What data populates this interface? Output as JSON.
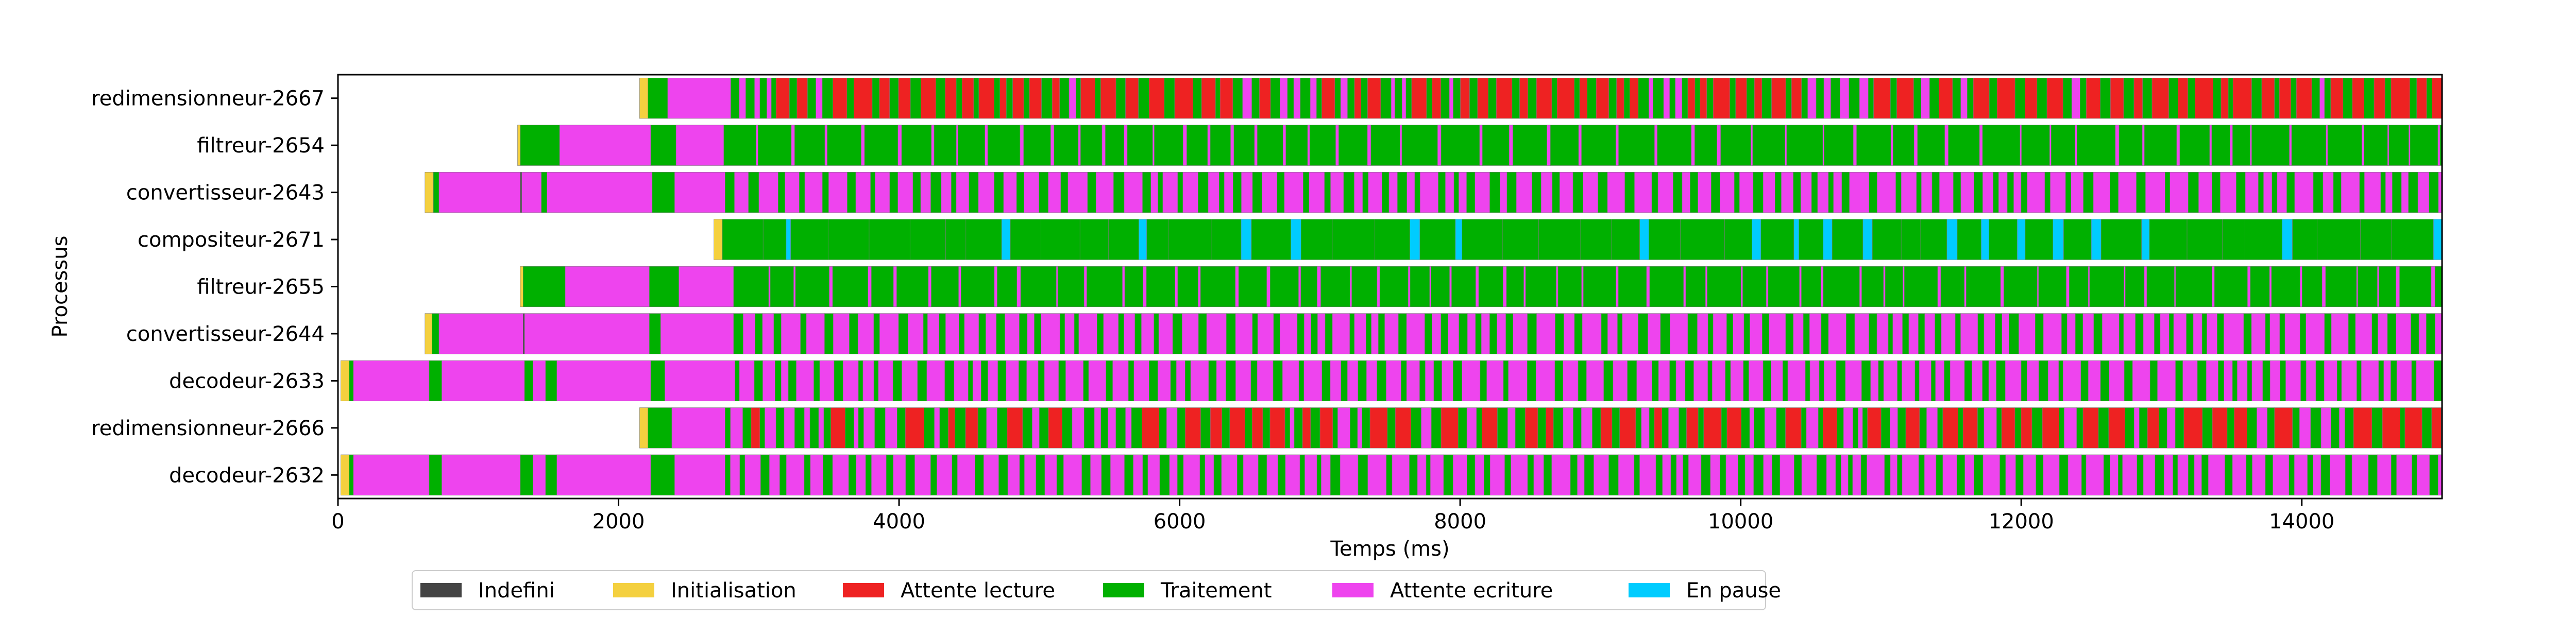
{
  "chart_data": {
    "type": "gantt",
    "xlabel": "Temps (ms)",
    "ylabel": "Processus",
    "xlim": [
      0,
      15000
    ],
    "xticks": [
      0,
      2000,
      4000,
      6000,
      8000,
      10000,
      12000,
      14000
    ],
    "grid": false,
    "legend_position": "bottom-left, below axis",
    "states": [
      {
        "key": "indefini",
        "label": "Indefini",
        "color": "#444444"
      },
      {
        "key": "initialisation",
        "label": "Initialisation",
        "color": "#f4d03f"
      },
      {
        "key": "attente_lecture",
        "label": "Attente lecture",
        "color": "#ee2222"
      },
      {
        "key": "traitement",
        "label": "Traitement",
        "color": "#00b000"
      },
      {
        "key": "attente_ecriture",
        "label": "Attente ecriture",
        "color": "#ee44ee"
      },
      {
        "key": "en_pause",
        "label": "En pause",
        "color": "#00ccff"
      }
    ],
    "processes": [
      {
        "name": "redimensionneur-2667",
        "start": 2150,
        "init_end": 2210,
        "warmup": [
          [
            "traitement",
            2210,
            2350
          ],
          [
            "attente_ecriture",
            2350,
            2800
          ]
        ],
        "pattern_start": 2800,
        "proc_ms": 55,
        "write_ms": 45,
        "read_ms": 90,
        "read_prob": 0.75,
        "pause_prob": 0
      },
      {
        "name": "filtreur-2654",
        "start": 1280,
        "init_end": 1300,
        "warmup": [
          [
            "traitement",
            1300,
            1580
          ],
          [
            "attente_ecriture",
            1580,
            2230
          ],
          [
            "traitement",
            2230,
            2410
          ],
          [
            "attente_ecriture",
            2410,
            2750
          ]
        ],
        "pattern_start": 2750,
        "proc_ms": 200,
        "write_ms": 18,
        "read_ms": 0,
        "read_prob": 0,
        "pause_prob": 0
      },
      {
        "name": "convertisseur-2643",
        "start": 620,
        "init_end": 680,
        "warmup": [
          [
            "traitement",
            680,
            720
          ],
          [
            "attente_ecriture",
            720,
            1300
          ],
          [
            "indefini",
            1300,
            1310
          ],
          [
            "attente_ecriture",
            1310,
            1450
          ],
          [
            "traitement",
            1450,
            1490
          ],
          [
            "attente_ecriture",
            1490,
            2240
          ],
          [
            "traitement",
            2240,
            2400
          ],
          [
            "attente_ecriture",
            2400,
            2760
          ]
        ],
        "pattern_start": 2760,
        "proc_ms": 55,
        "write_ms": 95,
        "read_ms": 0,
        "read_prob": 0,
        "pause_prob": 0
      },
      {
        "name": "compositeur-2671",
        "start": 2680,
        "init_end": 2740,
        "warmup": [],
        "pattern_start": 2740,
        "proc_ms": 230,
        "write_ms": 0,
        "read_ms": 55,
        "read_prob": 0,
        "pause_prob": 0.35
      },
      {
        "name": "filtreur-2655",
        "start": 1300,
        "init_end": 1320,
        "warmup": [
          [
            "traitement",
            1320,
            1620
          ],
          [
            "attente_ecriture",
            1620,
            2220
          ],
          [
            "traitement",
            2220,
            2430
          ],
          [
            "attente_ecriture",
            2430,
            2820
          ]
        ],
        "pattern_start": 2820,
        "proc_ms": 190,
        "write_ms": 18,
        "read_ms": 0,
        "read_prob": 0,
        "pause_prob": 0
      },
      {
        "name": "convertisseur-2644",
        "start": 620,
        "init_end": 670,
        "warmup": [
          [
            "traitement",
            670,
            720
          ],
          [
            "attente_ecriture",
            720,
            1320
          ],
          [
            "indefini",
            1320,
            1330
          ],
          [
            "attente_ecriture",
            1330,
            2220
          ],
          [
            "traitement",
            2220,
            2300
          ],
          [
            "attente_ecriture",
            2300,
            2820
          ]
        ],
        "pattern_start": 2820,
        "proc_ms": 50,
        "write_ms": 95,
        "read_ms": 0,
        "read_prob": 0,
        "pause_prob": 0
      },
      {
        "name": "decodeur-2633",
        "start": 20,
        "init_end": 80,
        "warmup": [
          [
            "traitement",
            80,
            110
          ],
          [
            "attente_ecriture",
            110,
            650
          ],
          [
            "traitement",
            650,
            740
          ],
          [
            "attente_ecriture",
            740,
            1330
          ],
          [
            "traitement",
            1330,
            1390
          ],
          [
            "attente_ecriture",
            1390,
            1480
          ],
          [
            "traitement",
            1480,
            1560
          ],
          [
            "attente_ecriture",
            1560,
            2230
          ],
          [
            "traitement",
            2230,
            2330
          ],
          [
            "attente_ecriture",
            2330,
            2830
          ]
        ],
        "pattern_start": 2830,
        "proc_ms": 50,
        "write_ms": 90,
        "read_ms": 0,
        "read_prob": 0,
        "pause_prob": 0
      },
      {
        "name": "redimensionneur-2666",
        "start": 2150,
        "init_end": 2210,
        "warmup": [
          [
            "traitement",
            2210,
            2380
          ],
          [
            "attente_ecriture",
            2380,
            2760
          ]
        ],
        "pattern_start": 2760,
        "proc_ms": 55,
        "write_ms": 60,
        "read_ms": 90,
        "read_prob": 0.55,
        "pause_prob": 0
      },
      {
        "name": "decodeur-2632",
        "start": 20,
        "init_end": 80,
        "warmup": [
          [
            "traitement",
            80,
            110
          ],
          [
            "attente_ecriture",
            110,
            650
          ],
          [
            "traitement",
            650,
            740
          ],
          [
            "attente_ecriture",
            740,
            1300
          ],
          [
            "traitement",
            1300,
            1390
          ],
          [
            "attente_ecriture",
            1390,
            1480
          ],
          [
            "traitement",
            1480,
            1560
          ],
          [
            "attente_ecriture",
            1560,
            2230
          ],
          [
            "traitement",
            2230,
            2400
          ],
          [
            "attente_ecriture",
            2400,
            2760
          ]
        ],
        "pattern_start": 2760,
        "proc_ms": 50,
        "write_ms": 90,
        "read_ms": 0,
        "read_prob": 0,
        "pause_prob": 0
      }
    ]
  }
}
